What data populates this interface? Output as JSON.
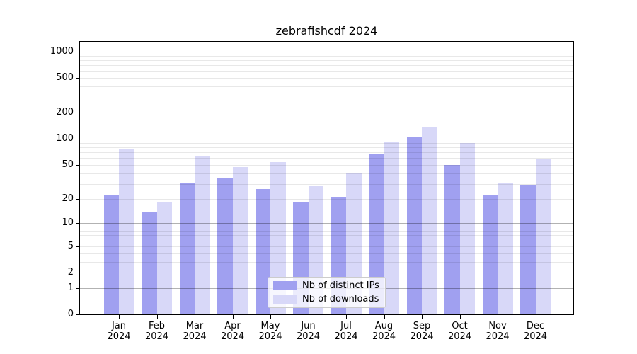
{
  "chart_data": {
    "type": "bar",
    "title": "zebrafishcdf 2024",
    "categories": [
      "Jan",
      "Feb",
      "Mar",
      "Apr",
      "May",
      "Jun",
      "Jul",
      "Aug",
      "Sep",
      "Oct",
      "Nov",
      "Dec"
    ],
    "x_tick_second_line": "2024",
    "series": [
      {
        "name": "Nb of distinct IPs",
        "color": "#a0a0f0",
        "values": [
          22,
          14,
          31,
          35,
          26,
          18,
          21,
          68,
          105,
          50,
          22,
          29
        ]
      },
      {
        "name": "Nb of downloads",
        "color": "#d8d8f8",
        "values": [
          77,
          18,
          64,
          47,
          54,
          28,
          40,
          93,
          137,
          90,
          31,
          58
        ]
      }
    ],
    "yscale": "log1p",
    "ylim": [
      0,
      1300
    ],
    "y_tick_values": [
      0,
      1,
      2,
      5,
      10,
      20,
      50,
      100,
      200,
      500,
      1000
    ],
    "grid_major": [
      1,
      10,
      100,
      1000
    ],
    "grid_minor": [
      2,
      3,
      4,
      5,
      6,
      7,
      8,
      9,
      20,
      30,
      40,
      50,
      60,
      70,
      80,
      90,
      200,
      300,
      400,
      500,
      600,
      700,
      800,
      900
    ],
    "grid_on": true,
    "legend_position": "lower center"
  }
}
